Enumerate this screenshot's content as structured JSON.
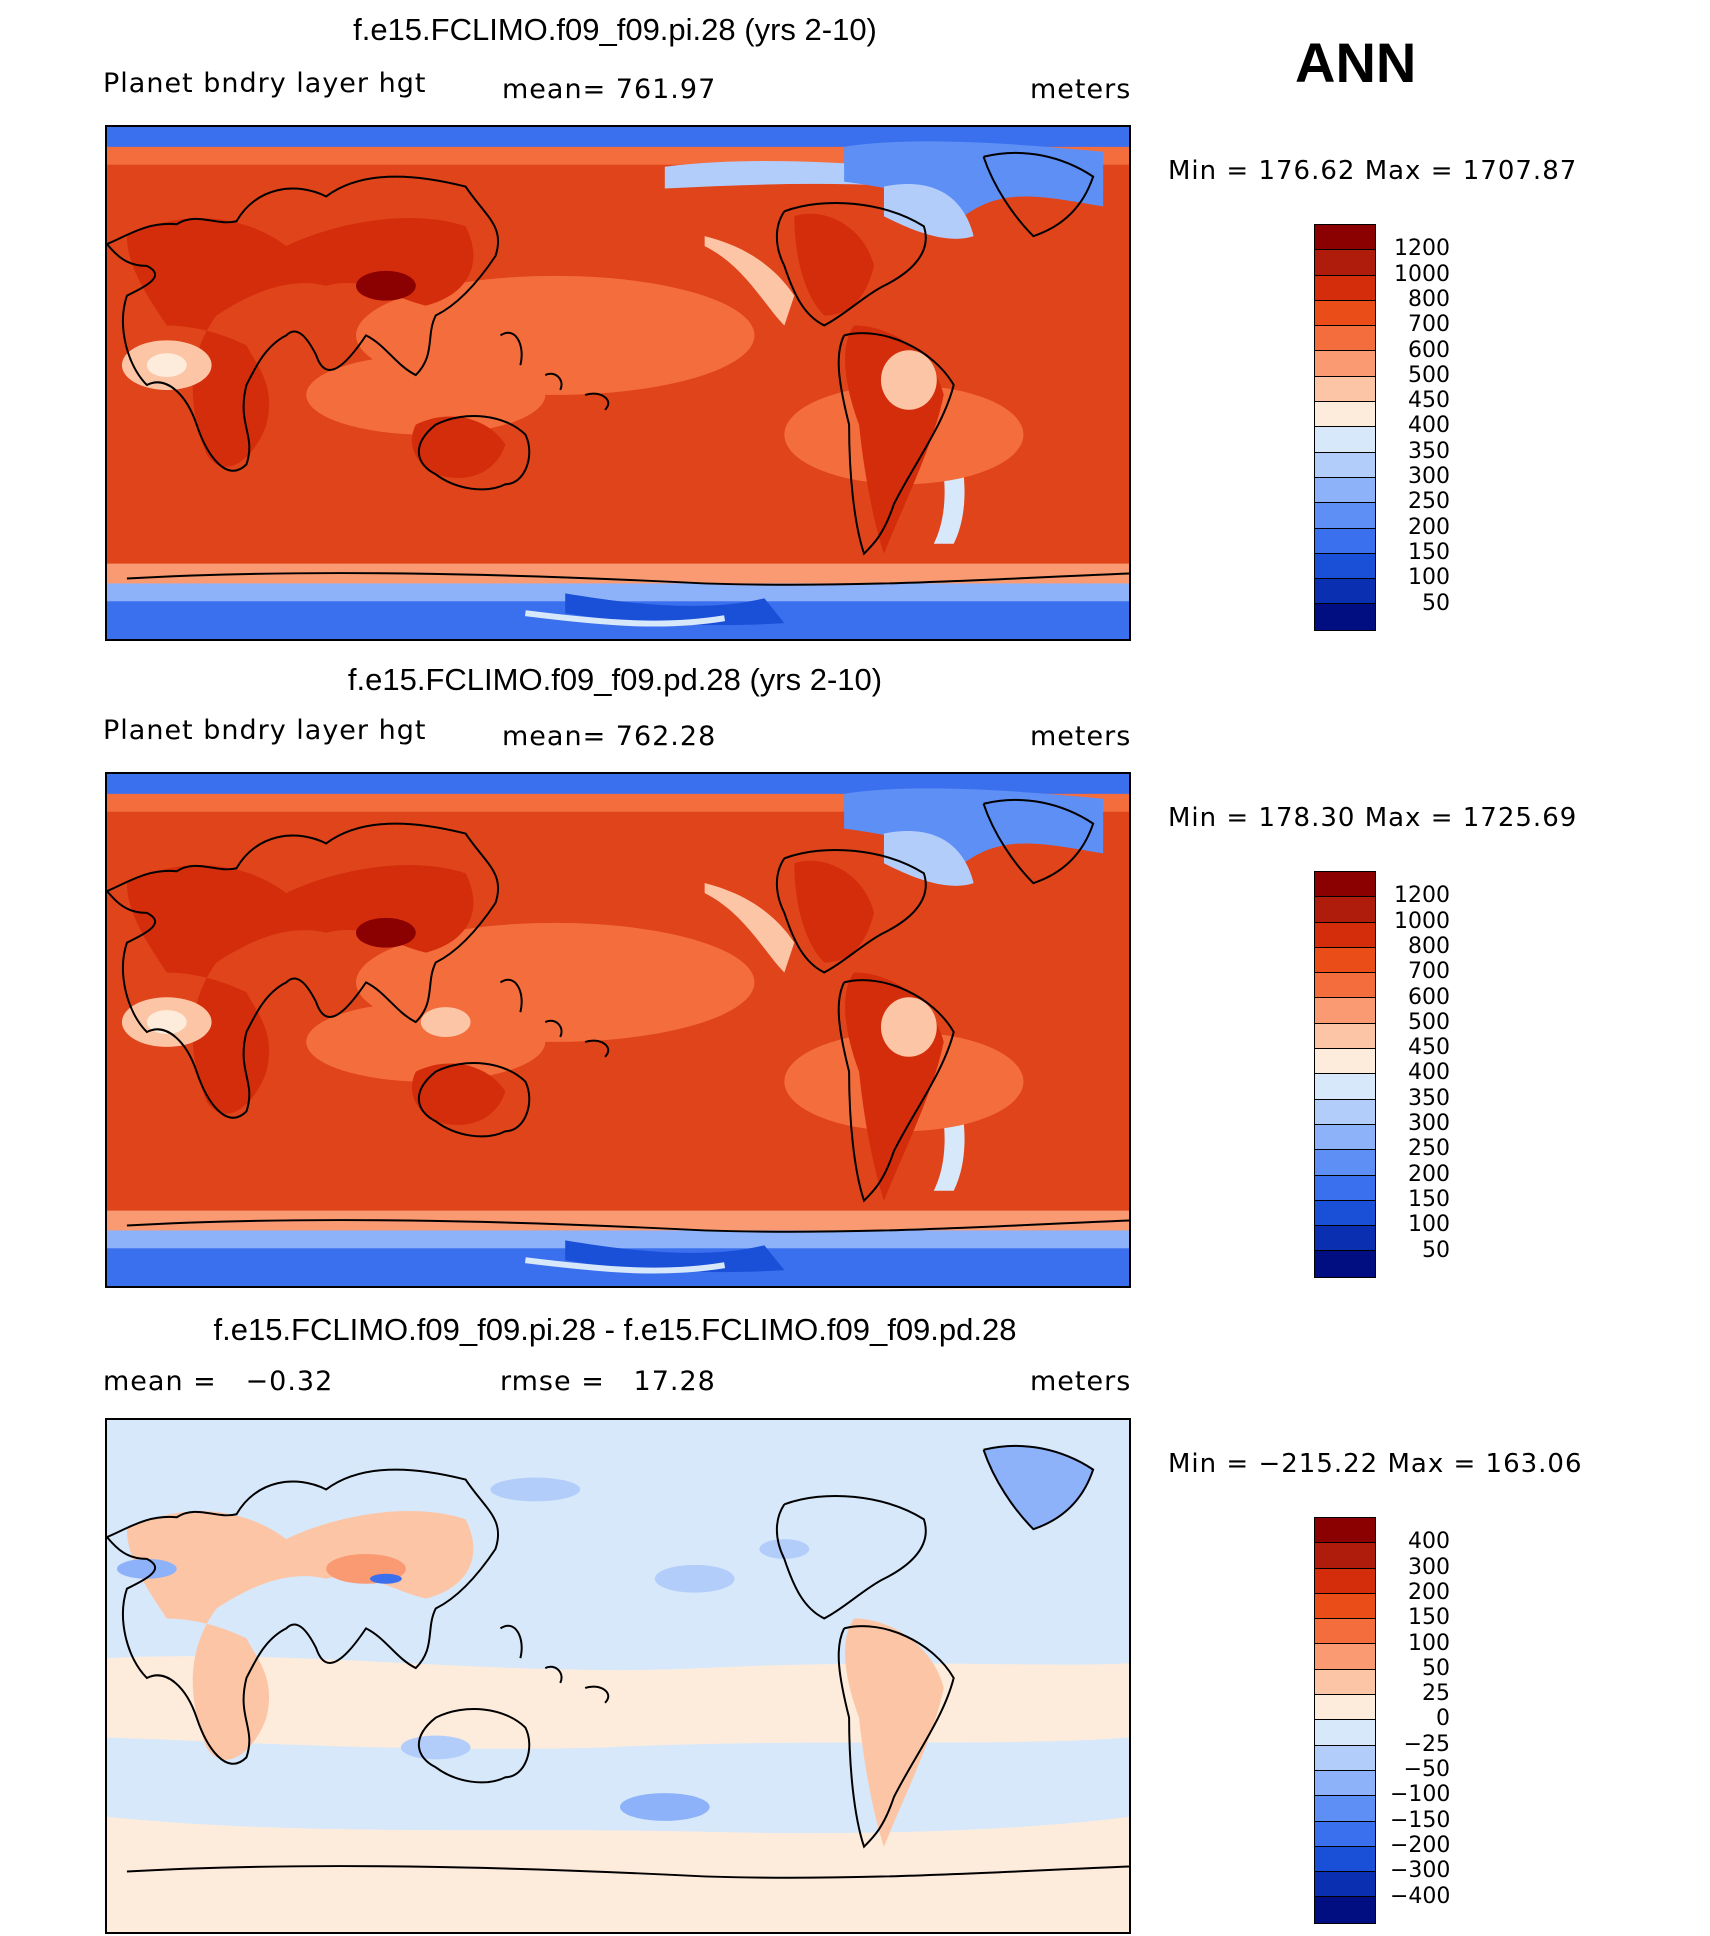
{
  "season": "ANN",
  "panels": [
    {
      "title": "f.e15.FCLIMO.f09_f09.pi.28 (yrs 2-10)",
      "left_label": "Planet bndry layer hgt",
      "center_label": "mean= 761.97",
      "right_label": "meters",
      "minmax": "Min = 176.62 Max = 1707.87",
      "colorbar": {
        "labels": [
          "1200",
          "1000",
          "800",
          "700",
          "600",
          "500",
          "450",
          "400",
          "350",
          "300",
          "250",
          "200",
          "150",
          "100",
          "50"
        ],
        "colors": [
          "#8b0000",
          "#b01c0c",
          "#d42d0c",
          "#eb4d18",
          "#f46d3d",
          "#f99a72",
          "#fcc6a6",
          "#fdecdc",
          "#d7e8fb",
          "#b3cdfb",
          "#8db2fa",
          "#5e8ff5",
          "#3a6fee",
          "#1a4fd8",
          "#0a2fb0",
          "#000e82"
        ]
      },
      "map_style": "absolute"
    },
    {
      "title": "f.e15.FCLIMO.f09_f09.pd.28 (yrs 2-10)",
      "left_label": "Planet bndry layer hgt",
      "center_label": "mean= 762.28",
      "right_label": "meters",
      "minmax": "Min = 178.30 Max = 1725.69",
      "colorbar": {
        "labels": [
          "1200",
          "1000",
          "800",
          "700",
          "600",
          "500",
          "450",
          "400",
          "350",
          "300",
          "250",
          "200",
          "150",
          "100",
          "50"
        ],
        "colors": [
          "#8b0000",
          "#b01c0c",
          "#d42d0c",
          "#eb4d18",
          "#f46d3d",
          "#f99a72",
          "#fcc6a6",
          "#fdecdc",
          "#d7e8fb",
          "#b3cdfb",
          "#8db2fa",
          "#5e8ff5",
          "#3a6fee",
          "#1a4fd8",
          "#0a2fb0",
          "#000e82"
        ]
      },
      "map_style": "absolute"
    },
    {
      "title": "f.e15.FCLIMO.f09_f09.pi.28 - f.e15.FCLIMO.f09_f09.pd.28",
      "left_label": "mean =   −0.32",
      "center_label": "rmse =   17.28",
      "right_label": "meters",
      "minmax": "Min = −215.22 Max = 163.06",
      "colorbar": {
        "labels": [
          "400",
          "300",
          "200",
          "150",
          "100",
          "50",
          "25",
          "0",
          "−25",
          "−50",
          "−100",
          "−150",
          "−200",
          "−300",
          "−400"
        ],
        "colors": [
          "#8b0000",
          "#b01c0c",
          "#d42d0c",
          "#eb4d18",
          "#f46d3d",
          "#f99a72",
          "#fcc6a6",
          "#fdecdc",
          "#d7e8fb",
          "#b3cdfb",
          "#8db2fa",
          "#5e8ff5",
          "#3a6fee",
          "#1a4fd8",
          "#0a2fb0",
          "#000e82"
        ]
      },
      "map_style": "difference"
    }
  ]
}
